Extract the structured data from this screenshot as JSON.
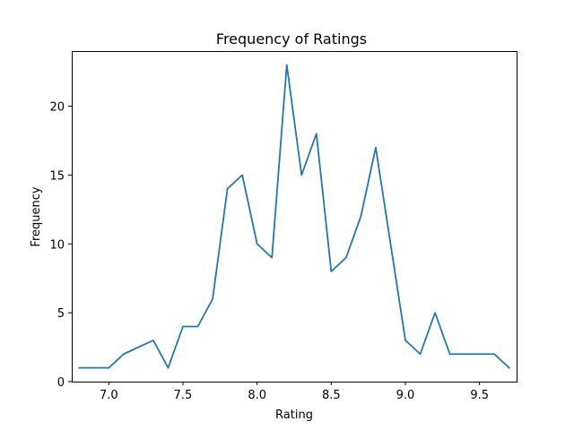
{
  "chart_data": {
    "type": "line",
    "title": "Frequency of Ratings",
    "xlabel": "Rating",
    "ylabel": "Frequency",
    "xlim": [
      6.75,
      9.75
    ],
    "ylim": [
      0,
      24
    ],
    "xticks": [
      "7.0",
      "7.5",
      "8.0",
      "8.5",
      "9.0",
      "9.5"
    ],
    "yticks": [
      "0",
      "5",
      "10",
      "15",
      "20"
    ],
    "grid": false,
    "line_color": "#1f77b4",
    "x": [
      6.8,
      6.9,
      7.0,
      7.1,
      7.2,
      7.3,
      7.4,
      7.5,
      7.6,
      7.7,
      7.8,
      7.9,
      8.0,
      8.1,
      8.2,
      8.3,
      8.4,
      8.5,
      8.6,
      8.7,
      8.8,
      8.9,
      9.0,
      9.1,
      9.2,
      9.3,
      9.4,
      9.5,
      9.6,
      9.7
    ],
    "values": [
      1,
      1,
      1,
      2,
      2.5,
      3,
      1,
      4,
      4,
      6,
      14,
      15,
      10,
      9,
      23,
      15,
      18,
      8,
      9,
      12,
      17,
      10,
      3,
      2,
      5,
      2,
      2,
      2,
      2,
      1
    ]
  }
}
